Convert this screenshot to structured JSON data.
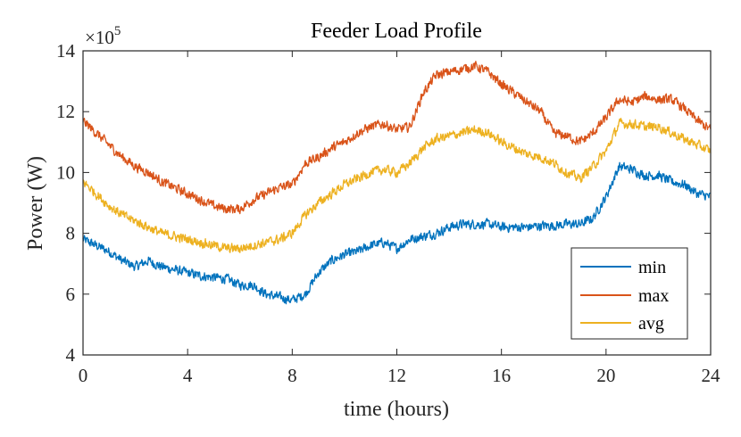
{
  "chart_data": {
    "type": "line",
    "title": "Feeder Load Profile",
    "xlabel": "time (hours)",
    "ylabel": "Power (W)",
    "y_exponent_base": "×10",
    "y_exponent_power": "5",
    "xlim": [
      0,
      24
    ],
    "ylim": [
      4,
      14
    ],
    "xticks": [
      0,
      4,
      8,
      12,
      16,
      20,
      24
    ],
    "yticks": [
      4,
      6,
      8,
      10,
      12,
      14
    ],
    "x_tick_labels": [
      "0",
      "4",
      "8",
      "12",
      "16",
      "20",
      "24"
    ],
    "y_tick_labels": [
      "4",
      "6",
      "8",
      "10",
      "12",
      "14"
    ],
    "y_units_scale": 100000,
    "grid": false,
    "legend_position": "bottom-right",
    "x": [
      0,
      0.5,
      1,
      1.5,
      2,
      2.5,
      3,
      3.5,
      4,
      4.5,
      5,
      5.5,
      6,
      6.5,
      7,
      7.5,
      8,
      8.5,
      9,
      9.5,
      10,
      10.5,
      11,
      11.5,
      12,
      12.5,
      13,
      13.5,
      14,
      14.5,
      15,
      15.5,
      16,
      16.5,
      17,
      17.5,
      18,
      18.5,
      19,
      19.5,
      20,
      20.5,
      21,
      21.5,
      22,
      22.5,
      23,
      23.5,
      24
    ],
    "series": [
      {
        "name": "min",
        "color": "#0072BD",
        "values": [
          7.8,
          7.6,
          7.4,
          7.1,
          6.9,
          7.1,
          6.9,
          6.8,
          6.7,
          6.6,
          6.55,
          6.5,
          6.3,
          6.3,
          6.0,
          5.9,
          5.8,
          6.0,
          6.7,
          7.1,
          7.3,
          7.4,
          7.6,
          7.7,
          7.5,
          7.8,
          7.9,
          8.0,
          8.2,
          8.3,
          8.3,
          8.3,
          8.2,
          8.2,
          8.2,
          8.25,
          8.25,
          8.3,
          8.3,
          8.5,
          9.2,
          10.2,
          10.1,
          9.9,
          9.9,
          9.7,
          9.6,
          9.3,
          9.2
        ]
      },
      {
        "name": "max",
        "color": "#D95319",
        "values": [
          11.7,
          11.3,
          10.9,
          10.5,
          10.2,
          10.0,
          9.7,
          9.5,
          9.3,
          9.1,
          8.9,
          8.8,
          8.8,
          9.1,
          9.3,
          9.5,
          9.6,
          10.3,
          10.5,
          10.8,
          11.0,
          11.3,
          11.5,
          11.6,
          11.4,
          11.5,
          12.6,
          13.2,
          13.3,
          13.4,
          13.5,
          13.3,
          12.9,
          12.6,
          12.3,
          12.0,
          11.3,
          11.2,
          11.0,
          11.3,
          11.8,
          12.4,
          12.3,
          12.5,
          12.4,
          12.4,
          12.1,
          11.7,
          11.4
        ]
      },
      {
        "name": "avg",
        "color": "#EDB120",
        "values": [
          9.7,
          9.3,
          8.9,
          8.6,
          8.4,
          8.2,
          8.0,
          7.9,
          7.8,
          7.7,
          7.6,
          7.5,
          7.5,
          7.6,
          7.7,
          7.8,
          8.0,
          8.6,
          9.0,
          9.3,
          9.6,
          9.8,
          10.0,
          10.1,
          10.0,
          10.3,
          10.8,
          11.1,
          11.2,
          11.3,
          11.4,
          11.3,
          11.0,
          10.8,
          10.6,
          10.5,
          10.3,
          10.0,
          9.8,
          10.2,
          10.7,
          11.6,
          11.6,
          11.5,
          11.5,
          11.3,
          11.1,
          10.9,
          10.7
        ]
      }
    ]
  }
}
